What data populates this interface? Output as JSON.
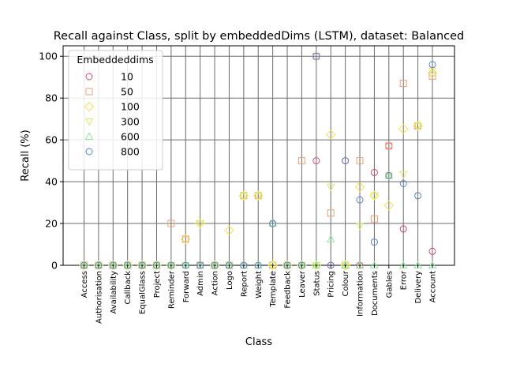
{
  "chart_data": {
    "type": "scatter",
    "title": "Recall against Class, split by embeddedDims (LSTM), dataset: Balanced",
    "xlabel": "Class",
    "ylabel": "Recall (%)",
    "ylim": [
      0,
      105
    ],
    "yticks": [
      0,
      20,
      40,
      60,
      80,
      100
    ],
    "grid": true,
    "legend": {
      "title": "Embeddeddims",
      "placement": "top-left"
    },
    "categories": [
      "Access",
      "Authorisation",
      "Availability",
      "Callback",
      "EqualGlass",
      "Project",
      "Reminder",
      "Forward",
      "Admin",
      "Action",
      "Logo",
      "Report",
      "Weight",
      "Template",
      "Feedback",
      "Leaver",
      "Status",
      "Pricing",
      "Colour",
      "Information",
      "Documents",
      "Gables",
      "Error",
      "Delivery",
      "Account"
    ],
    "series": [
      {
        "name": "10",
        "marker": "circle",
        "color": "#d6476b",
        "values": [
          0,
          0,
          0,
          0,
          0,
          0,
          0,
          12.5,
          0,
          0,
          0,
          0,
          33.3,
          20,
          0,
          0,
          50,
          0,
          50,
          0,
          44.4,
          57.1,
          17.4,
          66.7,
          6.7
        ]
      },
      {
        "name": "50",
        "marker": "square",
        "color": "#f0a070",
        "values": [
          0,
          0,
          0,
          0,
          0,
          0,
          20,
          12.5,
          0,
          0,
          0,
          33.3,
          33.3,
          0,
          0,
          50,
          100,
          25,
          0,
          50,
          22.2,
          57.1,
          87,
          66.7,
          90.5
        ]
      },
      {
        "name": "100",
        "marker": "diamond",
        "color": "#f5e050",
        "values": [
          0,
          0,
          0,
          0,
          0,
          0,
          0,
          12.5,
          20,
          0,
          16.7,
          33.3,
          33.3,
          0,
          0,
          0,
          0,
          62.5,
          0,
          37.5,
          33.3,
          28.6,
          65.2,
          66.7,
          92
        ]
      },
      {
        "name": "300",
        "marker": "triangle-down",
        "color": "#d8ec6a",
        "values": [
          0,
          0,
          0,
          0,
          0,
          0,
          0,
          0,
          20,
          0,
          0,
          33.3,
          33.3,
          0,
          0,
          0,
          0,
          37.5,
          0,
          18.8,
          33.3,
          42.9,
          43.5,
          66.7,
          93
        ]
      },
      {
        "name": "600",
        "marker": "triangle-up",
        "color": "#8ee8a0",
        "values": [
          0,
          0,
          0,
          0,
          0,
          0,
          0,
          0,
          0,
          0,
          0,
          0,
          0,
          20,
          0,
          0,
          0,
          12.5,
          0,
          0,
          0,
          42.9,
          0,
          0,
          0
        ]
      },
      {
        "name": "800",
        "marker": "circle",
        "color": "#5b7fcc",
        "values": [
          0,
          0,
          0,
          0,
          0,
          0,
          0,
          0,
          0,
          0,
          0,
          0,
          0,
          20,
          0,
          0,
          100,
          0,
          50,
          31.3,
          11.1,
          42.9,
          39.1,
          33.3,
          96
        ]
      }
    ]
  }
}
